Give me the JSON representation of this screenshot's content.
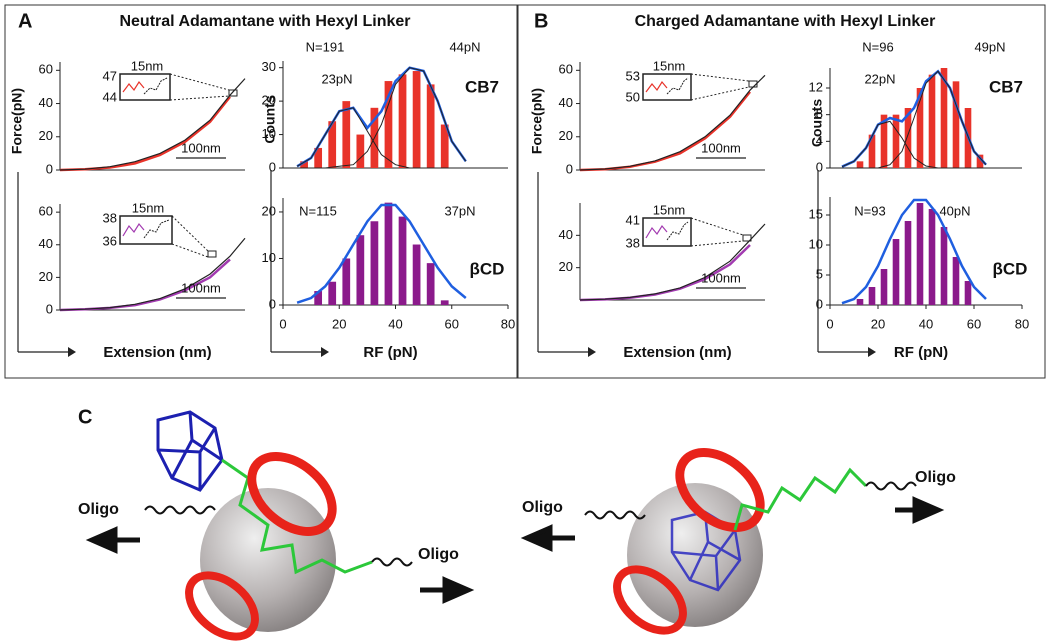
{
  "panels": [
    {
      "label": "A",
      "title": "Neutral Adamantane with Hexyl Linker"
    },
    {
      "label": "B",
      "title": "Charged Adamantane with Hexyl Linker"
    }
  ],
  "chart_data": [
    {
      "type": "line",
      "y_label": "Force(pN)",
      "xlim": [
        0,
        370
      ],
      "ylim": [
        0,
        65
      ],
      "yticks": [
        0,
        20,
        40,
        60
      ],
      "series": [
        {
          "color": "#e8332a",
          "x": [
            0,
            50,
            100,
            150,
            200,
            250,
            300,
            340
          ],
          "values": [
            0,
            0.4,
            1.5,
            4,
            9,
            17,
            29,
            44
          ]
        },
        {
          "color": "#222222",
          "x": [
            0,
            50,
            100,
            150,
            200,
            250,
            300,
            340,
            370
          ],
          "values": [
            0,
            0.5,
            2,
            5,
            10,
            18,
            30,
            45,
            55
          ]
        }
      ],
      "scale_bar": "100nm",
      "inset": {
        "scale": "15nm",
        "labels": [
          "47",
          "44"
        ]
      }
    },
    {
      "type": "line",
      "x_label": "Extension (nm)",
      "xlim": [
        0,
        370
      ],
      "ylim": [
        0,
        65
      ],
      "yticks": [
        0,
        20,
        40,
        60
      ],
      "series": [
        {
          "color": "#a23ab0",
          "x": [
            0,
            50,
            100,
            150,
            200,
            250,
            300,
            340
          ],
          "values": [
            0,
            0.4,
            1.3,
            3,
            6.5,
            12,
            20,
            31
          ]
        },
        {
          "color": "#222222",
          "x": [
            0,
            50,
            100,
            150,
            200,
            250,
            300,
            340,
            370
          ],
          "values": [
            0,
            0.5,
            1.5,
            3.5,
            7,
            13,
            22,
            33,
            44
          ]
        }
      ],
      "scale_bar": "100nm",
      "inset": {
        "scale": "15nm",
        "labels": [
          "38",
          "36"
        ]
      }
    },
    {
      "type": "histogram",
      "y_label": "Counts",
      "xlim": [
        0,
        80
      ],
      "ylim": [
        0,
        32
      ],
      "yticks": [
        0,
        10,
        20,
        30
      ],
      "bins": [
        5,
        10,
        15,
        20,
        25,
        30,
        35,
        40,
        45,
        50,
        55,
        60
      ],
      "values": [
        2,
        6,
        14,
        20,
        10,
        18,
        26,
        28,
        29,
        25,
        13
      ],
      "color": "#e8332a",
      "series": [
        {
          "color": "#1f5fe0",
          "x": [
            5,
            10,
            15,
            20,
            25,
            30,
            35,
            40,
            45,
            50,
            55,
            60,
            65
          ],
          "values": [
            0.5,
            3,
            10,
            17,
            18,
            12,
            17,
            26,
            30,
            29,
            20,
            8,
            2
          ]
        },
        {
          "color": "#222222",
          "x": [
            5,
            10,
            15,
            20,
            25,
            30,
            35,
            40,
            45,
            50,
            55,
            60,
            65
          ],
          "values": [
            0.5,
            3,
            10,
            17,
            18,
            11,
            4,
            1,
            0,
            0,
            0,
            0,
            0
          ]
        },
        {
          "color": "#222222",
          "x": [
            5,
            10,
            15,
            20,
            25,
            30,
            35,
            40,
            45,
            50,
            55,
            60,
            65
          ],
          "values": [
            0,
            0,
            0,
            0.5,
            1,
            5,
            13,
            25,
            30,
            29,
            20,
            8,
            2
          ]
        }
      ],
      "annotations": [
        "N=191",
        "23pN",
        "44pN",
        "CB7"
      ]
    },
    {
      "type": "histogram",
      "x_label": "RF (pN)",
      "xlim": [
        0,
        80
      ],
      "xticks": [
        0,
        20,
        40,
        60,
        80
      ],
      "ylim": [
        0,
        23
      ],
      "yticks": [
        0,
        10,
        20
      ],
      "bins": [
        10,
        15,
        20,
        25,
        30,
        35,
        40,
        45,
        50,
        55,
        60
      ],
      "values": [
        3,
        5,
        10,
        15,
        18,
        22,
        19,
        13,
        9,
        1
      ],
      "color": "#8b1a8b",
      "series": [
        {
          "color": "#1f5fe0",
          "x": [
            5,
            10,
            15,
            20,
            25,
            30,
            35,
            40,
            45,
            50,
            55,
            60,
            65
          ],
          "values": [
            0.5,
            1.5,
            4,
            8,
            13,
            18,
            21.5,
            21.5,
            18,
            13,
            8,
            4,
            1.5
          ]
        }
      ],
      "annotations": [
        "N=115",
        "37pN",
        "βCD"
      ]
    },
    {
      "type": "line",
      "y_label": "Force(pN)",
      "xlim": [
        0,
        370
      ],
      "ylim": [
        0,
        65
      ],
      "yticks": [
        0,
        20,
        40,
        60
      ],
      "series": [
        {
          "color": "#e8332a",
          "x": [
            0,
            50,
            100,
            150,
            200,
            250,
            300,
            340
          ],
          "values": [
            0,
            0.5,
            2,
            5,
            10,
            19,
            32,
            47
          ]
        },
        {
          "color": "#222222",
          "x": [
            0,
            50,
            100,
            150,
            200,
            250,
            300,
            340,
            370
          ],
          "values": [
            0,
            0.6,
            2.2,
            5.5,
            11,
            20,
            33,
            48,
            57
          ]
        }
      ],
      "scale_bar": "100nm",
      "inset": {
        "scale": "15nm",
        "labels": [
          "53",
          "50"
        ]
      }
    },
    {
      "type": "line",
      "x_label": "Extension (nm)",
      "xlim": [
        0,
        370
      ],
      "ylim": [
        0,
        60
      ],
      "yticks": [
        20,
        40
      ],
      "series": [
        {
          "color": "#a23ab0",
          "x": [
            0,
            50,
            100,
            150,
            200,
            250,
            300,
            340
          ],
          "values": [
            0,
            0.4,
            1.4,
            3.4,
            7,
            13,
            22,
            34
          ]
        },
        {
          "color": "#222222",
          "x": [
            0,
            50,
            100,
            150,
            200,
            250,
            300,
            340,
            370
          ],
          "values": [
            0,
            0.5,
            1.6,
            3.8,
            7.5,
            14,
            24,
            37,
            47
          ]
        }
      ],
      "scale_bar": "100nm",
      "inset": {
        "scale": "15nm",
        "labels": [
          "41",
          "38"
        ]
      }
    },
    {
      "type": "histogram",
      "y_label": "Counts",
      "xlim": [
        0,
        80
      ],
      "ylim": [
        0,
        15
      ],
      "yticks": [
        0,
        4,
        8,
        12
      ],
      "bins": [
        10,
        15,
        20,
        25,
        30,
        35,
        40,
        45,
        50,
        55,
        60,
        65
      ],
      "values": [
        1,
        5,
        8,
        8,
        9,
        12,
        14,
        15,
        13,
        9,
        2
      ],
      "color": "#e8332a",
      "series": [
        {
          "color": "#1f5fe0",
          "x": [
            5,
            10,
            15,
            20,
            25,
            30,
            35,
            40,
            45,
            50,
            55,
            60,
            65
          ],
          "values": [
            0.2,
            1,
            3,
            6.5,
            7.5,
            7,
            9,
            13,
            14.5,
            12,
            7,
            2.5,
            0.5
          ]
        },
        {
          "color": "#222222",
          "x": [
            5,
            10,
            15,
            20,
            25,
            30,
            35,
            40,
            45,
            50,
            55,
            60,
            65
          ],
          "values": [
            0.2,
            1,
            3,
            6.5,
            7,
            4.5,
            1.5,
            0.3,
            0,
            0,
            0,
            0,
            0
          ]
        },
        {
          "color": "#222222",
          "x": [
            5,
            10,
            15,
            20,
            25,
            30,
            35,
            40,
            45,
            50,
            55,
            60,
            65
          ],
          "values": [
            0,
            0,
            0,
            0,
            0.5,
            2.5,
            7.5,
            12.7,
            14.5,
            12,
            7,
            2.5,
            0.5
          ]
        }
      ],
      "annotations": [
        "N=96",
        "22pN",
        "49pN",
        "CB7"
      ]
    },
    {
      "type": "histogram",
      "x_label": "RF (pN)",
      "xlim": [
        0,
        80
      ],
      "xticks": [
        0,
        20,
        40,
        60,
        80
      ],
      "ylim": [
        0,
        18
      ],
      "yticks": [
        0,
        5,
        10,
        15
      ],
      "bins": [
        10,
        15,
        20,
        25,
        30,
        35,
        40,
        45,
        50,
        55,
        60
      ],
      "values": [
        1,
        3,
        6,
        11,
        14,
        17,
        16,
        13,
        8,
        4
      ],
      "color": "#8b1a8b",
      "series": [
        {
          "color": "#1f5fe0",
          "x": [
            5,
            10,
            15,
            20,
            25,
            30,
            35,
            40,
            45,
            50,
            55,
            60,
            65
          ],
          "values": [
            0.3,
            1,
            3,
            6.5,
            11,
            15,
            17.5,
            17.5,
            15,
            11,
            6.5,
            3,
            1
          ]
        }
      ],
      "annotations": [
        "N=93",
        "40pN",
        "βCD"
      ]
    }
  ],
  "diagram": {
    "label": "C",
    "oligo_labels": [
      "Oligo",
      "Oligo",
      "Oligo",
      "Oligo"
    ]
  }
}
